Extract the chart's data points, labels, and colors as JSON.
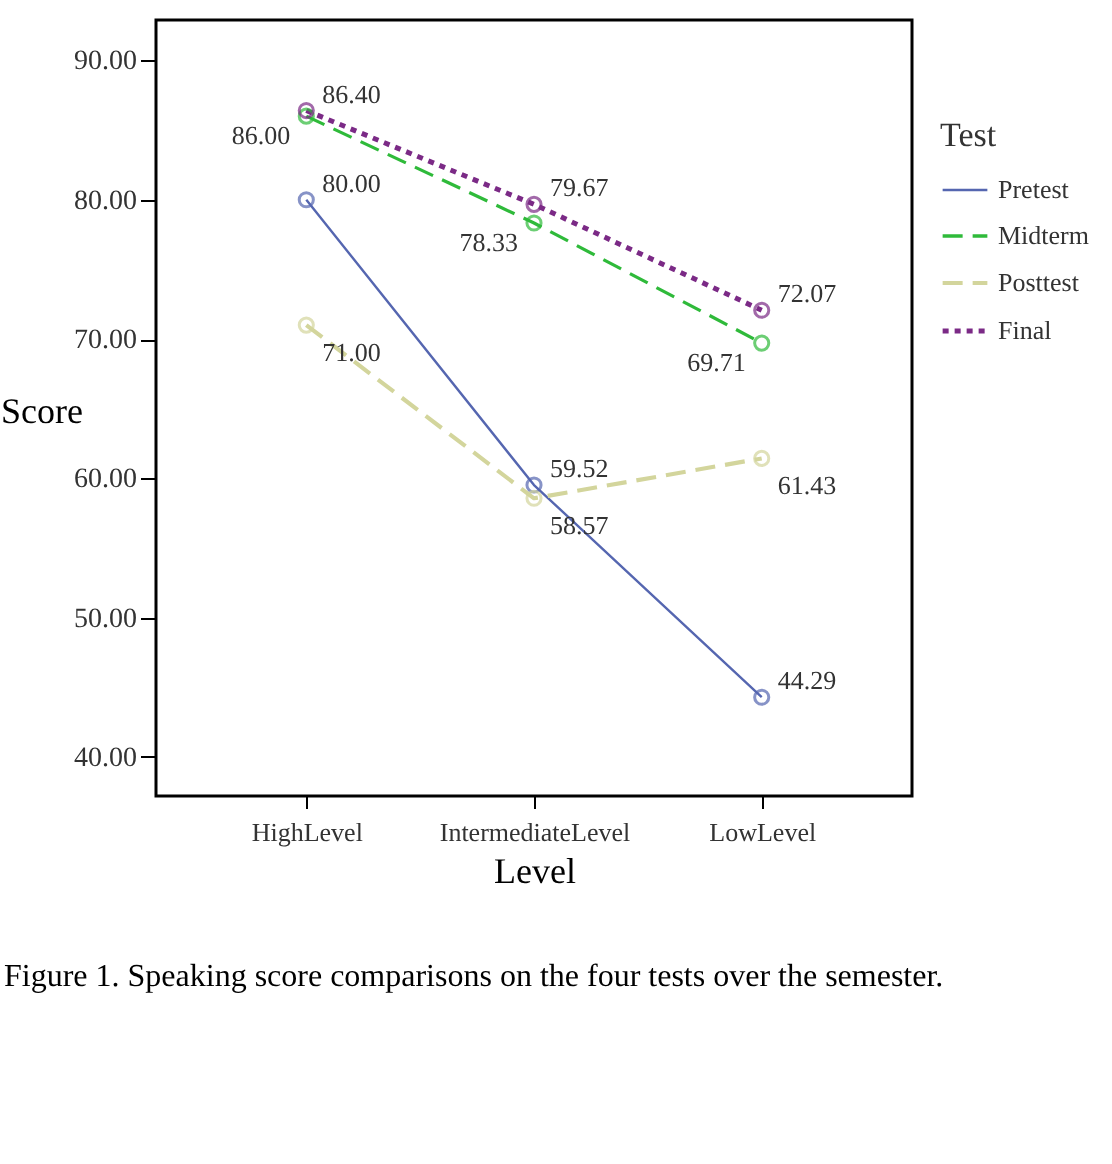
{
  "chart_data": {
    "type": "line",
    "xlabel": "Level",
    "ylabel": "Score",
    "legend_title": "Test",
    "categories": [
      "HighLevel",
      "IntermediateLevel",
      "LowLevel"
    ],
    "series": [
      {
        "name": "Pretest",
        "color": "#5566b0",
        "line_style": "solid",
        "values": [
          80.0,
          59.52,
          44.29
        ],
        "value_labels": [
          "80.00",
          "59.52",
          "44.29"
        ]
      },
      {
        "name": "Midterm",
        "color": "#2fba3a",
        "line_style": "dashed",
        "values": [
          86.0,
          78.33,
          69.71
        ],
        "value_labels": [
          "86.00",
          "78.33",
          "69.71"
        ]
      },
      {
        "name": "Posttest",
        "color": "#d3d59c",
        "line_style": "dashed",
        "values": [
          71.0,
          58.57,
          61.43
        ],
        "value_labels": [
          "71.00",
          "58.57",
          "61.43"
        ]
      },
      {
        "name": "Final",
        "color": "#7b2a86",
        "line_style": "dotted",
        "values": [
          86.4,
          79.67,
          72.07
        ],
        "value_labels": [
          "86.40",
          "79.67",
          "72.07"
        ]
      }
    ],
    "ylim": [
      37.2,
      92.9
    ],
    "yticks": [
      {
        "value": 40,
        "label": "40.00"
      },
      {
        "value": 50,
        "label": "50.00"
      },
      {
        "value": 60,
        "label": "60.00"
      },
      {
        "value": 70,
        "label": "70.00"
      },
      {
        "value": 80,
        "label": "80.00"
      },
      {
        "value": 90,
        "label": "90.00"
      }
    ],
    "grid": false,
    "legend": "right",
    "marker": "circle",
    "annotations": [
      "Figure 1. Speaking score comparisons on the four tests over the semester."
    ]
  }
}
